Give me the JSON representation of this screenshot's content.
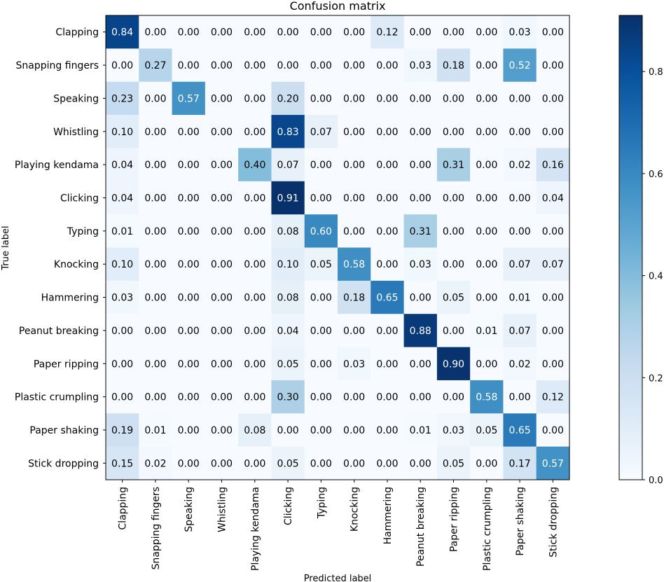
{
  "chart_data": {
    "type": "heatmap",
    "title": "Confusion matrix",
    "xlabel": "Predicted label",
    "ylabel": "True label",
    "classes": [
      "Clapping",
      "Snapping fingers",
      "Speaking",
      "Whistling",
      "Playing kendama",
      "Clicking",
      "Typing",
      "Knocking",
      "Hammering",
      "Peanut breaking",
      "Paper ripping",
      "Plastic crumpling",
      "Paper shaking",
      "Stick dropping"
    ],
    "values": [
      [
        0.84,
        0.0,
        0.0,
        0.0,
        0.0,
        0.0,
        0.0,
        0.0,
        0.12,
        0.0,
        0.0,
        0.0,
        0.03,
        0.0
      ],
      [
        0.0,
        0.27,
        0.0,
        0.0,
        0.0,
        0.0,
        0.0,
        0.0,
        0.0,
        0.03,
        0.18,
        0.0,
        0.52,
        0.0
      ],
      [
        0.23,
        0.0,
        0.57,
        0.0,
        0.0,
        0.2,
        0.0,
        0.0,
        0.0,
        0.0,
        0.0,
        0.0,
        0.0,
        0.0
      ],
      [
        0.1,
        0.0,
        0.0,
        0.0,
        0.0,
        0.83,
        0.07,
        0.0,
        0.0,
        0.0,
        0.0,
        0.0,
        0.0,
        0.0
      ],
      [
        0.04,
        0.0,
        0.0,
        0.0,
        0.4,
        0.07,
        0.0,
        0.0,
        0.0,
        0.0,
        0.31,
        0.0,
        0.02,
        0.16
      ],
      [
        0.04,
        0.0,
        0.0,
        0.0,
        0.0,
        0.91,
        0.0,
        0.0,
        0.0,
        0.0,
        0.0,
        0.0,
        0.0,
        0.04
      ],
      [
        0.01,
        0.0,
        0.0,
        0.0,
        0.0,
        0.08,
        0.6,
        0.0,
        0.0,
        0.31,
        0.0,
        0.0,
        0.0,
        0.0
      ],
      [
        0.1,
        0.0,
        0.0,
        0.0,
        0.0,
        0.1,
        0.05,
        0.58,
        0.0,
        0.03,
        0.0,
        0.0,
        0.07,
        0.07
      ],
      [
        0.03,
        0.0,
        0.0,
        0.0,
        0.0,
        0.08,
        0.0,
        0.18,
        0.65,
        0.0,
        0.05,
        0.0,
        0.01,
        0.0
      ],
      [
        0.0,
        0.0,
        0.0,
        0.0,
        0.0,
        0.04,
        0.0,
        0.0,
        0.0,
        0.88,
        0.0,
        0.01,
        0.07,
        0.0
      ],
      [
        0.0,
        0.0,
        0.0,
        0.0,
        0.0,
        0.05,
        0.0,
        0.03,
        0.0,
        0.0,
        0.9,
        0.0,
        0.02,
        0.0
      ],
      [
        0.0,
        0.0,
        0.0,
        0.0,
        0.0,
        0.3,
        0.0,
        0.0,
        0.0,
        0.0,
        0.0,
        0.58,
        0.0,
        0.12
      ],
      [
        0.19,
        0.01,
        0.0,
        0.0,
        0.08,
        0.0,
        0.0,
        0.0,
        0.0,
        0.01,
        0.03,
        0.05,
        0.65,
        0.0
      ],
      [
        0.15,
        0.02,
        0.0,
        0.0,
        0.0,
        0.05,
        0.0,
        0.0,
        0.0,
        0.0,
        0.05,
        0.0,
        0.17,
        0.57
      ]
    ],
    "colormap": "Blues",
    "vmin": 0.0,
    "vmax": 0.91,
    "colorbar": {
      "ticks": [
        0.0,
        0.2,
        0.4,
        0.6,
        0.8
      ],
      "tick_labels": [
        "0.0",
        "0.2",
        "0.4",
        "0.6",
        "0.8"
      ]
    },
    "text_threshold": 0.455,
    "text_color_light": "#ffffff",
    "text_color_dark": "#000000"
  }
}
